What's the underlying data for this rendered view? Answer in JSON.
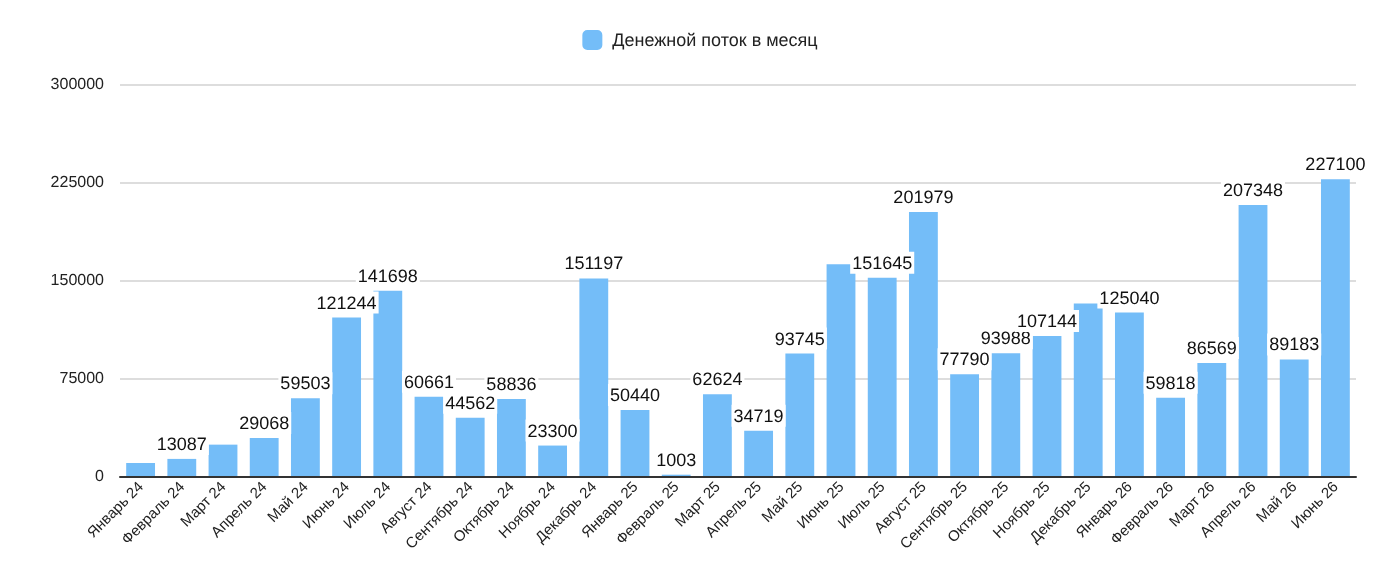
{
  "chart_data": {
    "type": "bar",
    "categories": [
      "Январь 24",
      "Февраль 24",
      "Март 24",
      "Апрель 24",
      "Май 24",
      "Июнь 24",
      "Июль 24",
      "Август 24",
      "Сентябрь 24",
      "Октябрь 24",
      "Ноябрь 24",
      "Декабрь 24",
      "Январь 25",
      "Февраль 25",
      "Март 25",
      "Апрель 25",
      "Май 25",
      "Июнь 25",
      "Июль 25",
      "Август 25",
      "Сентябрь 25",
      "Октябрь 25",
      "Ноябрь 25",
      "Декабрь 25",
      "Январь 26",
      "Февраль 26",
      "Март 26",
      "Апрель 26",
      "Май 26",
      "Июнь 26"
    ],
    "series": [
      {
        "name": "Денежной поток в месяц",
        "color": "#74bdf8",
        "values": [
          10000,
          13087,
          24000,
          29068,
          59503,
          121244,
          141698,
          60661,
          44562,
          58836,
          23300,
          151197,
          50440,
          1003,
          62624,
          34719,
          93745,
          162000,
          151645,
          201979,
          77790,
          93988,
          107144,
          132000,
          125040,
          59818,
          86569,
          207348,
          89183,
          227100
        ],
        "value_labels": [
          null,
          "13087",
          null,
          "29068",
          "59503",
          "121244",
          "141698",
          "60661",
          "44562",
          "58836",
          "23300",
          "151197",
          "50440",
          "1003",
          "62624",
          "34719",
          "93745",
          null,
          "151645",
          "201979",
          "77790",
          "93988",
          "107144",
          null,
          "125040",
          "59818",
          "86569",
          "207348",
          "89183",
          "227100"
        ]
      }
    ],
    "ylim": [
      0,
      300000
    ],
    "yticks": [
      0,
      75000,
      150000,
      225000,
      300000
    ],
    "grid": "y",
    "legend": "top"
  }
}
